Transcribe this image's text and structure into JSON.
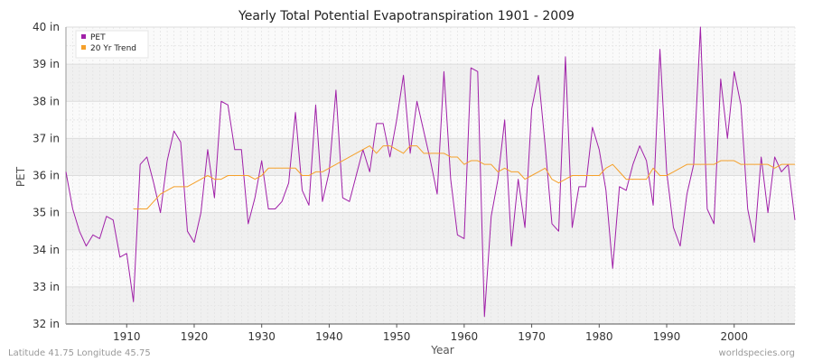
{
  "chart_data": {
    "type": "line",
    "title": "Yearly Total Potential Evapotranspiration 1901 - 2009",
    "xlabel": "Year",
    "ylabel": "PET",
    "xlim": [
      1901,
      2009
    ],
    "ylim": [
      32,
      40
    ],
    "x_ticks": [
      1910,
      1920,
      1930,
      1940,
      1950,
      1960,
      1970,
      1980,
      1990,
      2000
    ],
    "y_ticks": [
      {
        "value": 32,
        "label": "32 in"
      },
      {
        "value": 33,
        "label": "33 in"
      },
      {
        "value": 34,
        "label": "34 in"
      },
      {
        "value": 35,
        "label": "35 in"
      },
      {
        "value": 36,
        "label": "36 in"
      },
      {
        "value": 37,
        "label": "37 in"
      },
      {
        "value": 38,
        "label": "38 in"
      },
      {
        "value": 39,
        "label": "39 in"
      },
      {
        "value": 40,
        "label": "40 in"
      }
    ],
    "grid": true,
    "legend_position": "top-left",
    "series": [
      {
        "name": "PET",
        "color": "#a020a8",
        "x_start": 1901,
        "values": [
          36.1,
          35.1,
          34.5,
          34.1,
          34.4,
          34.3,
          34.9,
          34.8,
          33.8,
          33.9,
          32.6,
          36.3,
          36.5,
          35.8,
          35.0,
          36.4,
          37.2,
          36.9,
          34.5,
          34.2,
          35.0,
          36.7,
          35.4,
          38.0,
          37.9,
          36.7,
          36.7,
          34.7,
          35.4,
          36.4,
          35.1,
          35.1,
          35.3,
          35.8,
          37.7,
          35.6,
          35.2,
          37.9,
          35.3,
          36.1,
          38.3,
          35.4,
          35.3,
          36.0,
          36.7,
          36.1,
          37.4,
          37.4,
          36.5,
          37.5,
          38.7,
          36.6,
          38.0,
          37.2,
          36.4,
          35.5,
          38.8,
          35.9,
          34.4,
          34.3,
          38.9,
          38.8,
          32.2,
          34.9,
          35.9,
          37.5,
          34.1,
          35.9,
          34.6,
          37.8,
          38.7,
          36.8,
          34.7,
          34.5,
          39.2,
          34.6,
          35.7,
          35.7,
          37.3,
          36.7,
          35.6,
          33.5,
          35.7,
          35.6,
          36.3,
          36.8,
          36.4,
          35.2,
          39.4,
          36.1,
          34.6,
          34.1,
          35.5,
          36.3,
          40.0,
          35.1,
          34.7,
          38.6,
          37.0,
          38.8,
          37.9,
          35.1,
          34.2,
          36.5,
          35.0,
          36.5,
          36.1,
          36.3,
          34.8
        ]
      },
      {
        "name": "20 Yr Trend",
        "color": "#f5a02a",
        "x_start": 1911,
        "values": [
          35.1,
          35.1,
          35.1,
          35.3,
          35.5,
          35.6,
          35.7,
          35.7,
          35.7,
          35.8,
          35.9,
          36.0,
          35.9,
          35.9,
          36.0,
          36.0,
          36.0,
          36.0,
          35.9,
          36.0,
          36.2,
          36.2,
          36.2,
          36.2,
          36.2,
          36.0,
          36.0,
          36.1,
          36.1,
          36.2,
          36.3,
          36.4,
          36.5,
          36.6,
          36.7,
          36.8,
          36.6,
          36.8,
          36.8,
          36.7,
          36.6,
          36.8,
          36.8,
          36.6,
          36.6,
          36.6,
          36.6,
          36.5,
          36.5,
          36.3,
          36.4,
          36.4,
          36.3,
          36.3,
          36.1,
          36.2,
          36.1,
          36.1,
          35.9,
          36.0,
          36.1,
          36.2,
          35.9,
          35.8,
          35.9,
          36.0,
          36.0,
          36.0,
          36.0,
          36.0,
          36.2,
          36.3,
          36.1,
          35.9,
          35.9,
          35.9,
          35.9,
          36.2,
          36.0,
          36.0,
          36.1,
          36.2,
          36.3,
          36.3,
          36.3,
          36.3,
          36.3,
          36.4,
          36.4,
          36.4,
          36.3,
          36.3,
          36.3,
          36.3,
          36.3,
          36.2,
          36.3,
          36.3,
          36.3
        ]
      }
    ],
    "footer_left": "Latitude 41.75 Longitude 45.75",
    "footer_right": "worldspecies.org"
  }
}
